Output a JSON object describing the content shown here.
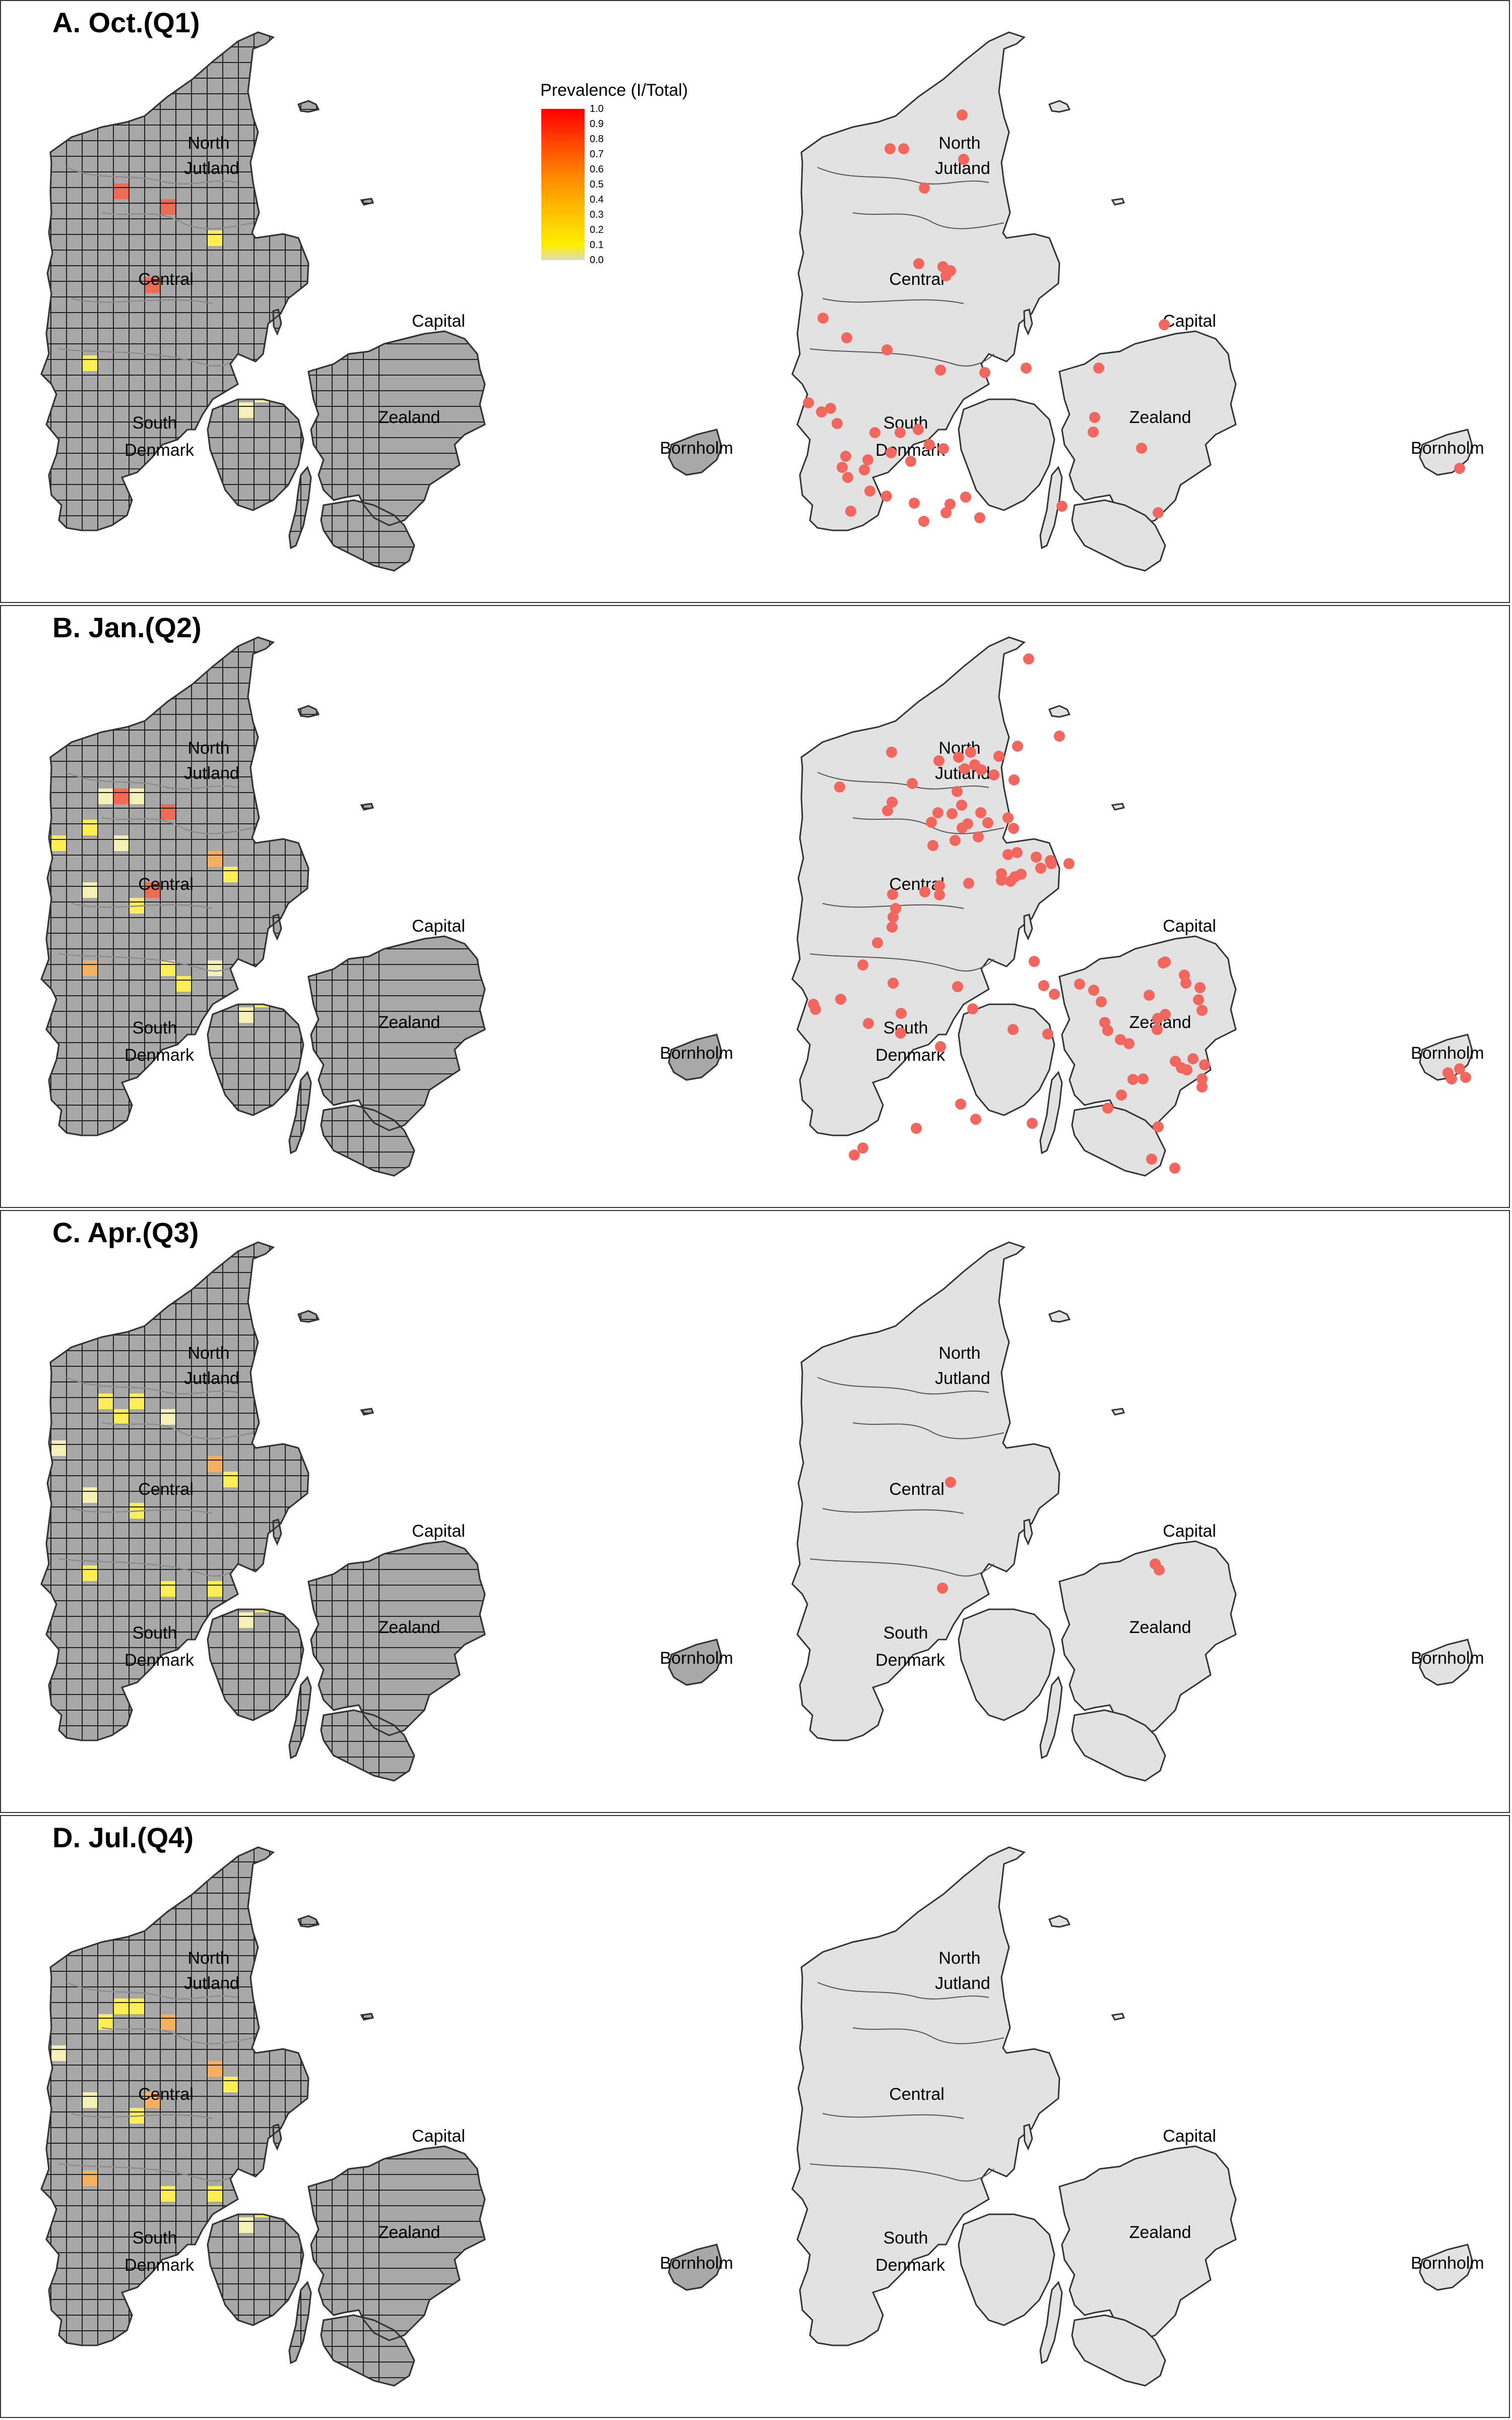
{
  "legend": {
    "title": "Prevalence (I/Total)",
    "ticks": [
      "1.0",
      "0.9",
      "0.8",
      "0.7",
      "0.6",
      "0.5",
      "0.4",
      "0.3",
      "0.2",
      "0.1",
      "0.0"
    ]
  },
  "region_labels": {
    "north_1": "North",
    "north_2": "Jutland",
    "central": "Central",
    "south_1": "South",
    "south_2": "Denmark",
    "capital": "Capital",
    "zealand": "Zealand",
    "bornholm": "Bornholm"
  },
  "colors": {
    "grid_fill": "#a8a8a8",
    "land_fill": "#e2e2e2",
    "outline": "#333333",
    "point": "#f2665e",
    "high": "#ee6a55",
    "mid": "#f5b060",
    "low": "#ffee55",
    "pale": "#f5f0b8"
  },
  "panels": [
    {
      "title": "A. Oct.(Q1)",
      "cells": [
        {
          "c": "high",
          "g": [
            5,
            2
          ]
        },
        {
          "c": "high",
          "g": [
            8,
            3
          ]
        },
        {
          "c": "high",
          "g": [
            7,
            8
          ]
        },
        {
          "c": "low",
          "g": [
            11,
            5
          ]
        },
        {
          "c": "low",
          "g": [
            3,
            13
          ]
        },
        {
          "c": "pale",
          "g": [
            14,
            15
          ]
        },
        {
          "c": "pale",
          "g": [
            13,
            16
          ]
        }
      ],
      "points": [
        [
          1907,
          226
        ],
        [
          1764,
          293
        ],
        [
          1791,
          293
        ],
        [
          1910,
          314
        ],
        [
          1832,
          371
        ],
        [
          1821,
          521
        ],
        [
          1869,
          527
        ],
        [
          1884,
          535
        ],
        [
          1875,
          545
        ],
        [
          1631,
          629
        ],
        [
          1678,
          668
        ],
        [
          1758,
          692
        ],
        [
          1864,
          732
        ],
        [
          1952,
          737
        ],
        [
          2034,
          728
        ],
        [
          2178,
          728
        ],
        [
          2308,
          642
        ],
        [
          1602,
          797
        ],
        [
          1646,
          808
        ],
        [
          1628,
          815
        ],
        [
          1659,
          838
        ],
        [
          1734,
          856
        ],
        [
          1784,
          856
        ],
        [
          1820,
          850
        ],
        [
          1842,
          880
        ],
        [
          1870,
          888
        ],
        [
          1766,
          896
        ],
        [
          1676,
          903
        ],
        [
          1720,
          910
        ],
        [
          1805,
          913
        ],
        [
          1669,
          925
        ],
        [
          1680,
          945
        ],
        [
          1713,
          930
        ],
        [
          1724,
          972
        ],
        [
          1757,
          982
        ],
        [
          1812,
          996
        ],
        [
          1883,
          998
        ],
        [
          1914,
          984
        ],
        [
          1831,
          1032
        ],
        [
          1875,
          1015
        ],
        [
          1942,
          1025
        ],
        [
          1686,
          1012
        ],
        [
          2105,
          1002
        ],
        [
          2170,
          826
        ],
        [
          2167,
          855
        ],
        [
          2263,
          887
        ],
        [
          2296,
          1015
        ],
        [
          2894,
          927
        ]
      ]
    },
    {
      "title": "B. Jan.(Q2)",
      "cells": [
        {
          "c": "high",
          "g": [
            5,
            2
          ]
        },
        {
          "c": "high",
          "g": [
            8,
            3
          ]
        },
        {
          "c": "high",
          "g": [
            7,
            8
          ]
        },
        {
          "c": "pale",
          "g": [
            4,
            2
          ]
        },
        {
          "c": "pale",
          "g": [
            6,
            2
          ]
        },
        {
          "c": "low",
          "g": [
            1,
            5
          ]
        },
        {
          "c": "low",
          "g": [
            3,
            4
          ]
        },
        {
          "c": "pale",
          "g": [
            5,
            5
          ]
        },
        {
          "c": "mid",
          "g": [
            11,
            6
          ]
        },
        {
          "c": "low",
          "g": [
            12,
            7
          ]
        },
        {
          "c": "low",
          "g": [
            6,
            9
          ]
        },
        {
          "c": "pale",
          "g": [
            3,
            8
          ]
        },
        {
          "c": "mid",
          "g": [
            3,
            13
          ]
        },
        {
          "c": "low",
          "g": [
            8,
            13
          ]
        },
        {
          "c": "low",
          "g": [
            14,
            15
          ]
        },
        {
          "c": "pale",
          "g": [
            13,
            16
          ]
        },
        {
          "c": "low",
          "g": [
            9,
            14
          ]
        },
        {
          "c": "pale",
          "g": [
            11,
            13
          ]
        }
      ],
      "points": [
        [
          2039,
          105
        ],
        [
          1767,
          290
        ],
        [
          2100,
          258
        ],
        [
          1924,
          290
        ],
        [
          1900,
          300
        ],
        [
          1861,
          307
        ],
        [
          1912,
          323
        ],
        [
          1932,
          315
        ],
        [
          1980,
          298
        ],
        [
          1945,
          325
        ],
        [
          1970,
          335
        ],
        [
          2017,
          278
        ],
        [
          2010,
          345
        ],
        [
          1808,
          352
        ],
        [
          1664,
          359
        ],
        [
          1768,
          389
        ],
        [
          1759,
          406
        ],
        [
          1897,
          368
        ],
        [
          1906,
          395
        ],
        [
          1944,
          410
        ],
        [
          1887,
          412
        ],
        [
          1859,
          410
        ],
        [
          1846,
          429
        ],
        [
          1907,
          440
        ],
        [
          1918,
          432
        ],
        [
          1958,
          430
        ],
        [
          1998,
          420
        ],
        [
          2009,
          441
        ],
        [
          1939,
          458
        ],
        [
          1893,
          465
        ],
        [
          1849,
          475
        ],
        [
          2016,
          489
        ],
        [
          1998,
          493
        ],
        [
          2054,
          498
        ],
        [
          2082,
          505
        ],
        [
          2084,
          511
        ],
        [
          2119,
          511
        ],
        [
          2063,
          520
        ],
        [
          2024,
          532
        ],
        [
          1985,
          531
        ],
        [
          1985,
          544
        ],
        [
          2003,
          546
        ],
        [
          2012,
          537
        ],
        [
          1920,
          550
        ],
        [
          1862,
          555
        ],
        [
          1833,
          567
        ],
        [
          1862,
          573
        ],
        [
          1769,
          572
        ],
        [
          1775,
          600
        ],
        [
          1770,
          617
        ],
        [
          1768,
          637
        ],
        [
          1739,
          668
        ],
        [
          1710,
          712
        ],
        [
          1770,
          748
        ],
        [
          1898,
          755
        ],
        [
          2050,
          705
        ],
        [
          2069,
          753
        ],
        [
          2090,
          770
        ],
        [
          1928,
          799
        ],
        [
          1786,
          808
        ],
        [
          1666,
          780
        ],
        [
          1612,
          790
        ],
        [
          1616,
          800
        ],
        [
          1721,
          828
        ],
        [
          1785,
          847
        ],
        [
          1864,
          874
        ],
        [
          2008,
          840
        ],
        [
          2077,
          849
        ],
        [
          2190,
          826
        ],
        [
          2196,
          842
        ],
        [
          2221,
          860
        ],
        [
          2294,
          840
        ],
        [
          2295,
          818
        ],
        [
          2383,
          802
        ],
        [
          2376,
          781
        ],
        [
          2379,
          757
        ],
        [
          2351,
          748
        ],
        [
          2348,
          732
        ],
        [
          2306,
          708
        ],
        [
          2310,
          706
        ],
        [
          2140,
          750
        ],
        [
          2168,
          762
        ],
        [
          2183,
          785
        ],
        [
          2278,
          772
        ],
        [
          2310,
          810
        ],
        [
          2238,
          868
        ],
        [
          2246,
          939
        ],
        [
          2266,
          938
        ],
        [
          2330,
          903
        ],
        [
          2342,
          916
        ],
        [
          2353,
          920
        ],
        [
          2365,
          898
        ],
        [
          2388,
          910
        ],
        [
          2383,
          938
        ],
        [
          2383,
          954
        ],
        [
          2223,
          970
        ],
        [
          2196,
          996
        ],
        [
          1904,
          988
        ],
        [
          1934,
          1018
        ],
        [
          2046,
          1026
        ],
        [
          1816,
          1036
        ],
        [
          2296,
          1033
        ],
        [
          1710,
          1075
        ],
        [
          1693,
          1089
        ],
        [
          2283,
          1097
        ],
        [
          2329,
          1115
        ],
        [
          2894,
          918
        ],
        [
          2871,
          926
        ],
        [
          2878,
          938
        ],
        [
          2906,
          935
        ]
      ]
    },
    {
      "title": "C. Apr.(Q3)",
      "cells": [
        {
          "c": "low",
          "g": [
            4,
            2
          ]
        },
        {
          "c": "low",
          "g": [
            6,
            2
          ]
        },
        {
          "c": "low",
          "g": [
            5,
            3
          ]
        },
        {
          "c": "pale",
          "g": [
            8,
            3
          ]
        },
        {
          "c": "mid",
          "g": [
            11,
            6
          ]
        },
        {
          "c": "low",
          "g": [
            12,
            7
          ]
        },
        {
          "c": "low",
          "g": [
            6,
            9
          ]
        },
        {
          "c": "pale",
          "g": [
            3,
            8
          ]
        },
        {
          "c": "low",
          "g": [
            3,
            13
          ]
        },
        {
          "c": "low",
          "g": [
            8,
            14
          ]
        },
        {
          "c": "low",
          "g": [
            14,
            15
          ]
        },
        {
          "c": "pale",
          "g": [
            13,
            16
          ]
        },
        {
          "c": "low",
          "g": [
            11,
            14
          ]
        },
        {
          "c": "pale",
          "g": [
            1,
            5
          ]
        }
      ],
      "points": [
        [
          1884,
          538
        ],
        [
          2290,
          700
        ],
        [
          2298,
          712
        ],
        [
          1868,
          748
        ]
      ]
    },
    {
      "title": "D. Jul.(Q4)",
      "cells": [
        {
          "c": "low",
          "g": [
            5,
            2
          ]
        },
        {
          "c": "mid",
          "g": [
            8,
            3
          ]
        },
        {
          "c": "mid",
          "g": [
            7,
            8
          ]
        },
        {
          "c": "low",
          "g": [
            6,
            2
          ]
        },
        {
          "c": "mid",
          "g": [
            11,
            6
          ]
        },
        {
          "c": "low",
          "g": [
            12,
            7
          ]
        },
        {
          "c": "low",
          "g": [
            6,
            9
          ]
        },
        {
          "c": "pale",
          "g": [
            3,
            8
          ]
        },
        {
          "c": "mid",
          "g": [
            3,
            13
          ]
        },
        {
          "c": "low",
          "g": [
            8,
            14
          ]
        },
        {
          "c": "low",
          "g": [
            14,
            15
          ]
        },
        {
          "c": "pale",
          "g": [
            13,
            16
          ]
        },
        {
          "c": "low",
          "g": [
            11,
            14
          ]
        },
        {
          "c": "pale",
          "g": [
            1,
            5
          ]
        },
        {
          "c": "low",
          "g": [
            4,
            3
          ]
        }
      ],
      "points": []
    }
  ]
}
